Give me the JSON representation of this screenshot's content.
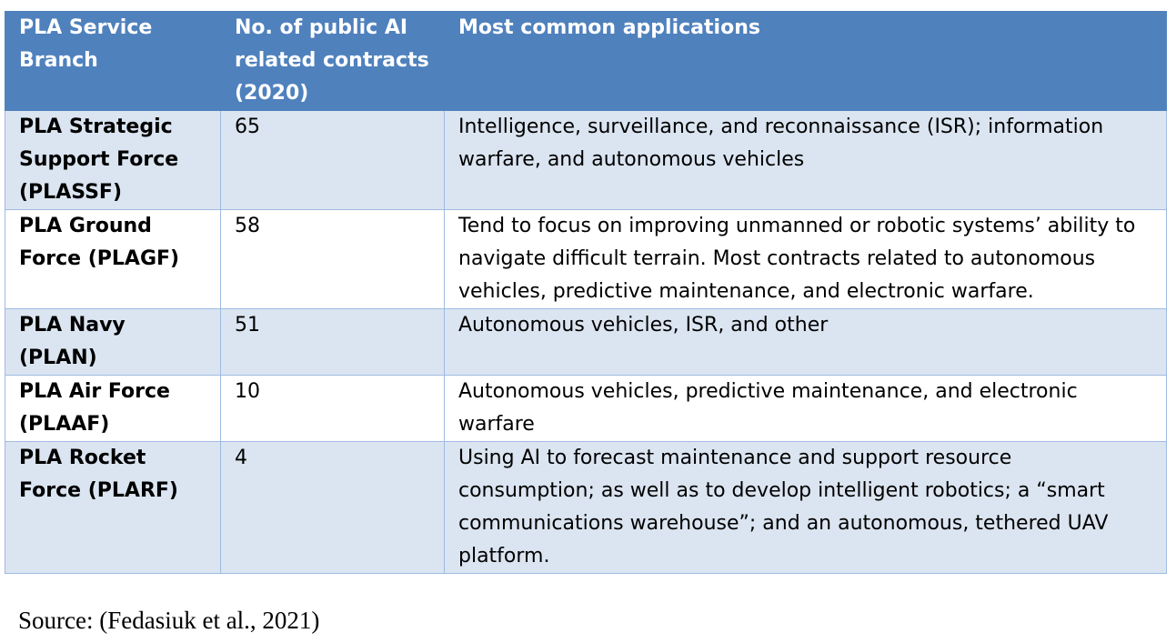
{
  "table": {
    "headers": {
      "branch": "PLA Service Branch",
      "contracts": "No. of public AI related contracts (2020)",
      "applications": "Most common applications"
    },
    "rows": [
      {
        "branch": "PLA Strategic Support Force (PLASSF)",
        "contracts": "65",
        "applications": "Intelligence, surveillance, and reconnaissance (ISR); information warfare, and autonomous vehicles"
      },
      {
        "branch": "PLA Ground Force (PLAGF)",
        "contracts": "58",
        "applications": "Tend to focus on improving unmanned or robotic systems’ ability to navigate difficult terrain. Most contracts related to autonomous vehicles, predictive maintenance, and electronic warfare."
      },
      {
        "branch": "PLA Navy (PLAN)",
        "contracts": "51",
        "applications": "Autonomous vehicles, ISR, and other"
      },
      {
        "branch": "PLA Air Force (PLAAF)",
        "contracts": "10",
        "applications": "Autonomous vehicles, predictive maintenance, and electronic warfare"
      },
      {
        "branch": "PLA Rocket Force (PLARF)",
        "contracts": "4",
        "applications": "Using AI to forecast maintenance and support resource consumption; as well as to develop intelligent robotics; a “smart communications warehouse”; and an autonomous, tethered UAV platform."
      }
    ]
  },
  "source": "Source: (Fedasiuk et al., 2021)",
  "colors": {
    "header_background": "#4f81bd",
    "band_background": "#dbe5f1",
    "border": "#9dbbe0"
  }
}
